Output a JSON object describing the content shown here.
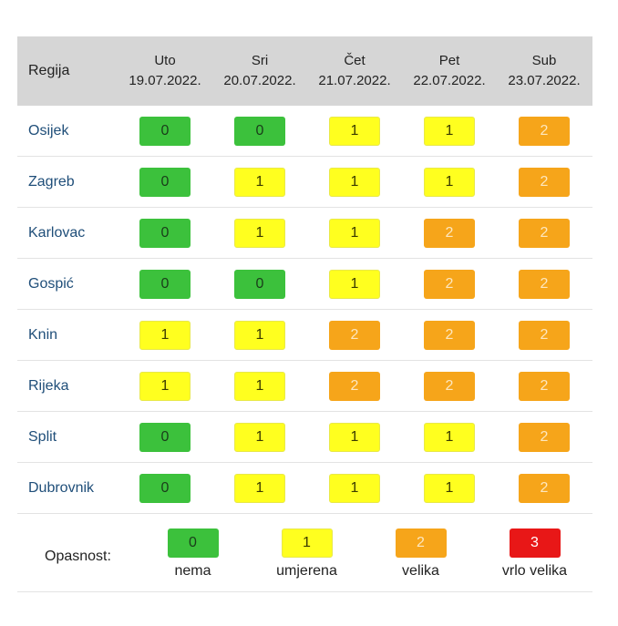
{
  "header": {
    "region_label": "Regija",
    "days": [
      {
        "name": "Uto",
        "date": "19.07.2022."
      },
      {
        "name": "Sri",
        "date": "20.07.2022."
      },
      {
        "name": "Čet",
        "date": "21.07.2022."
      },
      {
        "name": "Pet",
        "date": "22.07.2022."
      },
      {
        "name": "Sub",
        "date": "23.07.2022."
      }
    ]
  },
  "rows": [
    {
      "region": "Osijek",
      "levels": [
        "0",
        "0",
        "1",
        "1",
        "2"
      ]
    },
    {
      "region": "Zagreb",
      "levels": [
        "0",
        "1",
        "1",
        "1",
        "2"
      ]
    },
    {
      "region": "Karlovac",
      "levels": [
        "0",
        "1",
        "1",
        "2",
        "2"
      ]
    },
    {
      "region": "Gospić",
      "levels": [
        "0",
        "0",
        "1",
        "2",
        "2"
      ]
    },
    {
      "region": "Knin",
      "levels": [
        "1",
        "1",
        "2",
        "2",
        "2"
      ]
    },
    {
      "region": "Rijeka",
      "levels": [
        "1",
        "1",
        "2",
        "2",
        "2"
      ]
    },
    {
      "region": "Split",
      "levels": [
        "0",
        "1",
        "1",
        "1",
        "2"
      ]
    },
    {
      "region": "Dubrovnik",
      "levels": [
        "0",
        "1",
        "1",
        "1",
        "2"
      ]
    }
  ],
  "legend": {
    "label": "Opasnost:",
    "items": [
      {
        "value": "0",
        "text": "nema"
      },
      {
        "value": "1",
        "text": "umjerena"
      },
      {
        "value": "2",
        "text": "velika"
      },
      {
        "value": "3",
        "text": "vrlo velika"
      }
    ]
  },
  "colors": {
    "level_0": "#3cc13c",
    "level_1": "#ffff1f",
    "level_2": "#f6a51a",
    "level_3": "#e81717",
    "header_bg": "#d6d6d6",
    "region_text": "#1f4e79"
  }
}
